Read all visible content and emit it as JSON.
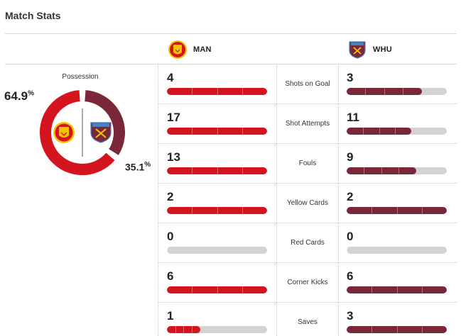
{
  "page": {
    "title": "Match Stats"
  },
  "colors": {
    "home": "#d5151d",
    "away": "#7a2739",
    "track": "#d3d3d3"
  },
  "teams": {
    "home": {
      "abbr": "MAN",
      "crest_icon": "manchester-united-crest-icon"
    },
    "away": {
      "abbr": "WHU",
      "crest_icon": "west-ham-crest-icon"
    }
  },
  "possession": {
    "label": "Possession",
    "home_value": "64.9",
    "away_value": "35.1",
    "unit": "%",
    "home_fraction": 0.649,
    "away_fraction": 0.351
  },
  "stats": [
    {
      "label": "Shots on Goal",
      "home": "4",
      "away": "3",
      "home_fraction": 1.0,
      "away_fraction": 0.75
    },
    {
      "label": "Shot Attempts",
      "home": "17",
      "away": "11",
      "home_fraction": 1.0,
      "away_fraction": 0.647
    },
    {
      "label": "Fouls",
      "home": "13",
      "away": "9",
      "home_fraction": 1.0,
      "away_fraction": 0.692
    },
    {
      "label": "Yellow Cards",
      "home": "2",
      "away": "2",
      "home_fraction": 1.0,
      "away_fraction": 1.0
    },
    {
      "label": "Red Cards",
      "home": "0",
      "away": "0",
      "home_fraction": 0.0,
      "away_fraction": 0.0
    },
    {
      "label": "Corner Kicks",
      "home": "6",
      "away": "6",
      "home_fraction": 1.0,
      "away_fraction": 1.0
    },
    {
      "label": "Saves",
      "home": "1",
      "away": "3",
      "home_fraction": 0.333,
      "away_fraction": 1.0
    }
  ]
}
